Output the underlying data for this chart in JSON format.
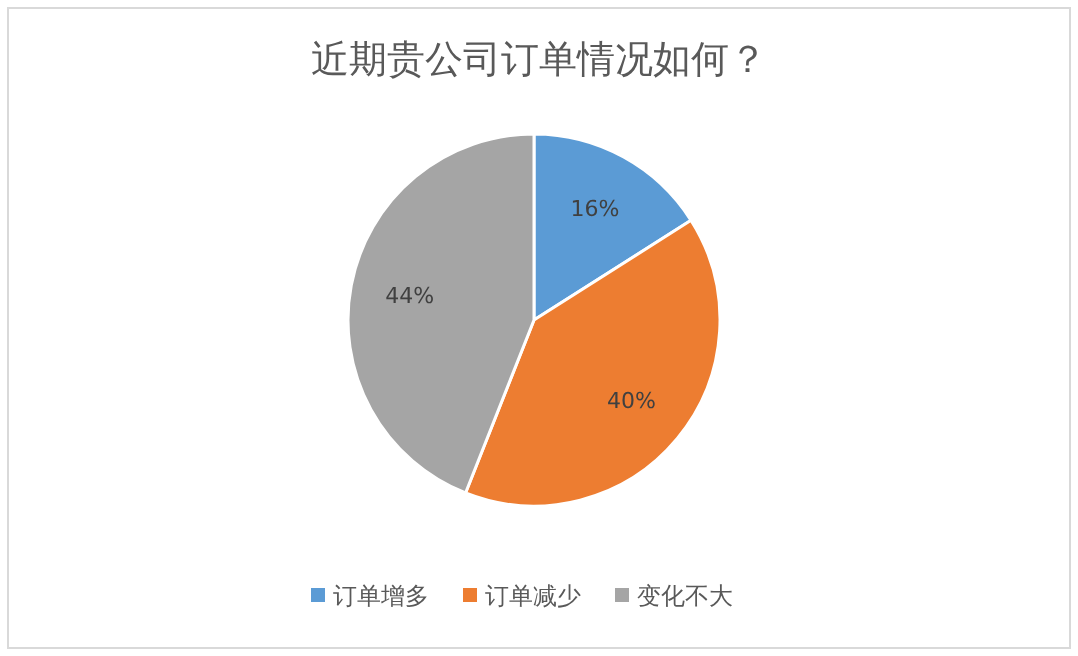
{
  "chart_data": {
    "type": "pie",
    "title": "近期贵公司订单情况如何？",
    "categories": [
      "订单增多",
      "订单减少",
      "变化不大"
    ],
    "values": [
      16,
      40,
      44
    ],
    "colors": [
      "#5b9bd5",
      "#ed7d31",
      "#a5a5a5"
    ],
    "value_labels": [
      "16%",
      "40%",
      "44%"
    ],
    "legend": "bottom"
  }
}
